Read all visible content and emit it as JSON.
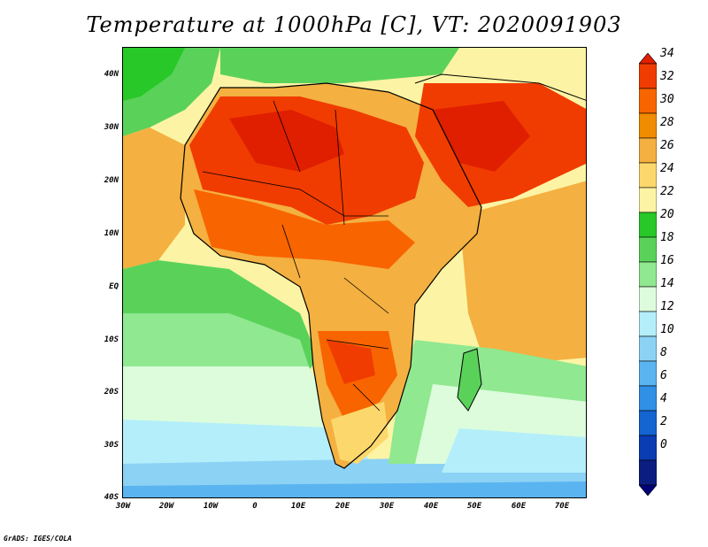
{
  "title": "Temperature at 1000hPa [C], VT: 2020091903",
  "credit": "GrADS: IGES/COLA",
  "map": {
    "projection": "latlon",
    "lon_labels": [
      "30W",
      "20W",
      "10W",
      "0",
      "10E",
      "20E",
      "30E",
      "40E",
      "50E",
      "60E",
      "70E"
    ],
    "lat_labels": [
      "40N",
      "30N",
      "20N",
      "10N",
      "EQ",
      "10S",
      "20S",
      "30S",
      "40S"
    ],
    "variable": "temperature",
    "level": "1000hPa",
    "units": "C",
    "valid_time": "2020091903"
  },
  "colorbar": {
    "labels": [
      "34",
      "32",
      "30",
      "28",
      "26",
      "24",
      "22",
      "20",
      "18",
      "16",
      "14",
      "12",
      "10",
      "8",
      "6",
      "4",
      "2",
      "0"
    ],
    "colors": [
      "#e01e00",
      "#f03c00",
      "#f86400",
      "#f08c00",
      "#f4b040",
      "#fcd86c",
      "#fcf4a4",
      "#28c828",
      "#5ad25a",
      "#90e890",
      "#dcfcdc",
      "#b4eefa",
      "#8cd2f4",
      "#5ab4f0",
      "#3090e6",
      "#1464d2",
      "#0a3cb4",
      "#0a1e82",
      "#000078"
    ]
  }
}
